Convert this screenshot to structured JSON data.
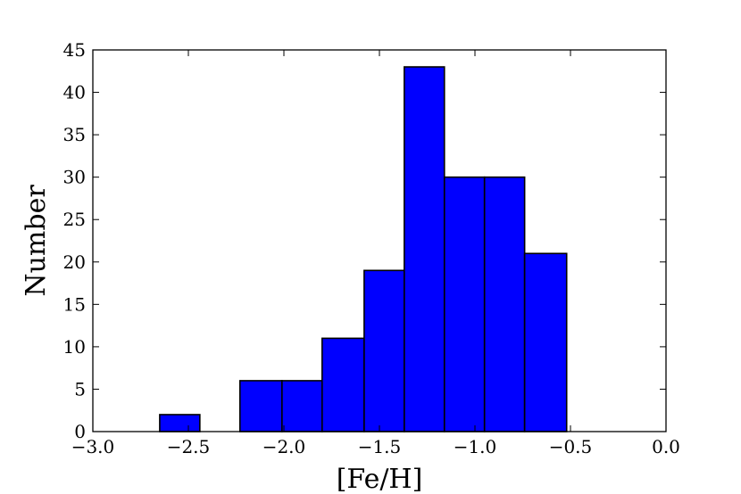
{
  "chart_data": {
    "type": "bar",
    "subtype": "histogram",
    "bar_color": "#0000ff",
    "edge_color": "#000000",
    "xlabel": "[Fe/H]",
    "ylabel": "Number",
    "xlim": [
      -3.0,
      0.0
    ],
    "ylim": [
      0,
      45
    ],
    "xticks": [
      -3.0,
      -2.5,
      -2.0,
      -1.5,
      -1.0,
      -0.5,
      0.0
    ],
    "xtick_labels": [
      "−3.0",
      "−2.5",
      "−2.0",
      "−1.5",
      "−1.0",
      "−0.5",
      "0.0"
    ],
    "yticks": [
      0,
      5,
      10,
      15,
      20,
      25,
      30,
      35,
      40,
      45
    ],
    "ytick_labels": [
      "0",
      "5",
      "10",
      "15",
      "20",
      "25",
      "30",
      "35",
      "40",
      "45"
    ],
    "bins": [
      {
        "x0": -2.65,
        "x1": -2.44,
        "count": 2
      },
      {
        "x0": -2.44,
        "x1": -2.23,
        "count": 0
      },
      {
        "x0": -2.23,
        "x1": -2.01,
        "count": 6
      },
      {
        "x0": -2.01,
        "x1": -1.8,
        "count": 6
      },
      {
        "x0": -1.8,
        "x1": -1.58,
        "count": 11
      },
      {
        "x0": -1.58,
        "x1": -1.37,
        "count": 19
      },
      {
        "x0": -1.37,
        "x1": -1.16,
        "count": 43
      },
      {
        "x0": -1.16,
        "x1": -0.95,
        "count": 30
      },
      {
        "x0": -0.95,
        "x1": -0.74,
        "count": 30
      },
      {
        "x0": -0.74,
        "x1": -0.52,
        "count": 21
      }
    ],
    "grid": false,
    "legend": false
  }
}
